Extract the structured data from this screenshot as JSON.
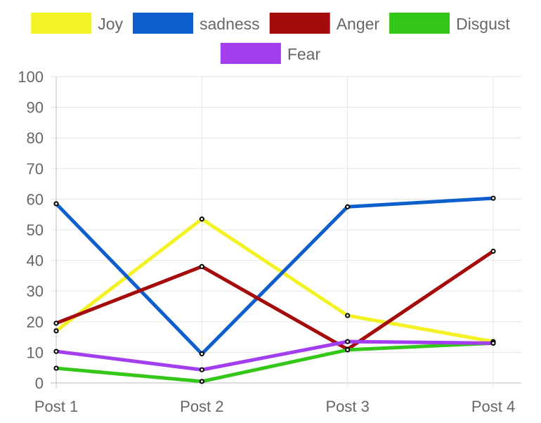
{
  "chart_data": {
    "type": "line",
    "title": "",
    "xlabel": "",
    "ylabel": "",
    "categories": [
      "Post 1",
      "Post 2",
      "Post 3",
      "Post 4"
    ],
    "ylim": [
      0,
      100
    ],
    "yticks": [
      0,
      10,
      20,
      30,
      40,
      50,
      60,
      70,
      80,
      90,
      100
    ],
    "grid": true,
    "legend_position": "top",
    "series": [
      {
        "name": "Joy",
        "color": "#f2f224",
        "values": [
          17,
          53.5,
          22,
          13.5
        ]
      },
      {
        "name": "sadness",
        "color": "#0e5ecb",
        "values": [
          58.5,
          9.5,
          57.5,
          60.3
        ]
      },
      {
        "name": "Anger",
        "color": "#a50b0b",
        "values": [
          19.5,
          38,
          11,
          43
        ]
      },
      {
        "name": "Disgust",
        "color": "#34c71a",
        "values": [
          4.8,
          0.5,
          10.8,
          13
        ]
      },
      {
        "name": "Fear",
        "color": "#a33ef0",
        "values": [
          10.3,
          4.3,
          13.5,
          13
        ]
      }
    ]
  }
}
